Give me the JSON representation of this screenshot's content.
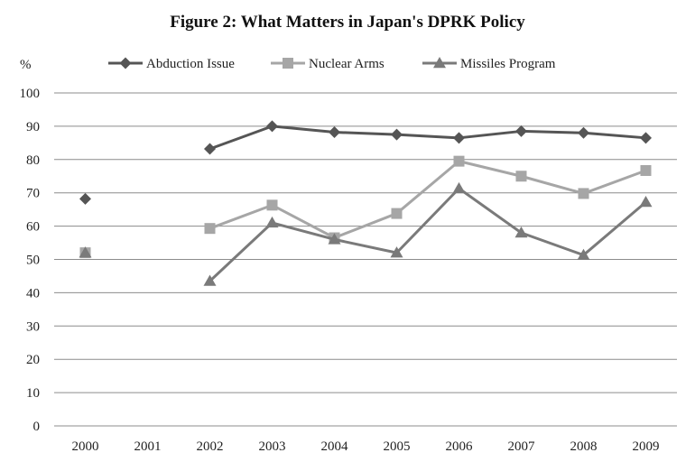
{
  "chart_data": {
    "type": "line",
    "title": "Figure 2: What Matters in Japan's DPRK Policy",
    "y_unit": "%",
    "xlabel": "",
    "ylabel": "",
    "categories": [
      "2000",
      "2001",
      "2002",
      "2003",
      "2004",
      "2005",
      "2006",
      "2007",
      "2008",
      "2009"
    ],
    "ylim": [
      0,
      100
    ],
    "yticks": [
      0,
      10,
      20,
      30,
      40,
      50,
      60,
      70,
      80,
      90,
      100
    ],
    "grid": true,
    "legend_position": "top",
    "series": [
      {
        "name": "Abduction Issue",
        "marker": "diamond",
        "color": "#555555",
        "values": [
          68.2,
          null,
          83.2,
          90.0,
          88.2,
          87.5,
          86.5,
          88.5,
          88.0,
          86.5
        ]
      },
      {
        "name": "Nuclear Arms",
        "marker": "square",
        "color": "#a6a6a6",
        "values": [
          52.0,
          null,
          59.3,
          66.3,
          56.5,
          63.8,
          79.5,
          75.0,
          69.8,
          76.7
        ]
      },
      {
        "name": "Missiles Program",
        "marker": "triangle",
        "color": "#7a7a7a",
        "values": [
          52.0,
          null,
          43.5,
          61.0,
          56.0,
          52.0,
          71.3,
          58.0,
          51.3,
          67.2
        ]
      }
    ]
  }
}
